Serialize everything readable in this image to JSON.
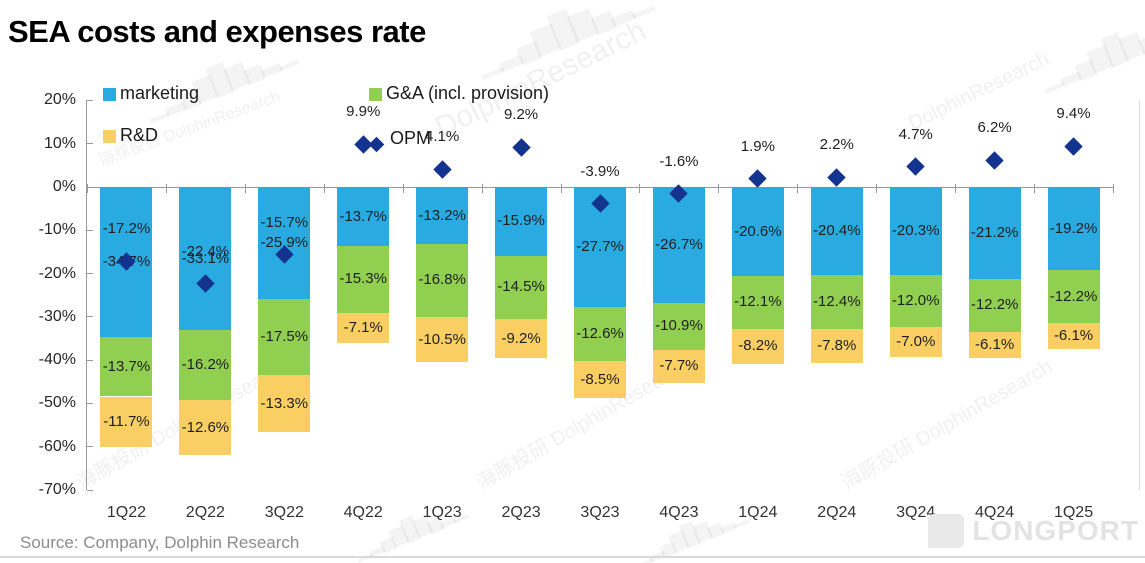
{
  "title": "SEA costs and expenses rate",
  "source": "Source: Company, Dolphin Research",
  "legend": [
    {
      "label": "marketing",
      "type": "square",
      "color": "#29ABE2"
    },
    {
      "label": "G&A (incl. provision)",
      "type": "square",
      "color": "#90CF50"
    },
    {
      "label": "R&D",
      "type": "square",
      "color": "#F9CF63"
    },
    {
      "label": "OPM",
      "type": "diamond",
      "color": "#14338F"
    }
  ],
  "watermarks": {
    "cn": "海豚投研",
    "en": "DolphinResearch",
    "longport": "LONGPORT",
    "logo_glyph": "▁▂▄▆█▆▄▂▁"
  },
  "chart_data": {
    "type": "bar",
    "subtype": "stacked-bars-with-scatter-overlay",
    "title": "SEA costs and expenses rate",
    "categories": [
      "1Q22",
      "2Q22",
      "3Q22",
      "4Q22",
      "1Q23",
      "2Q23",
      "3Q23",
      "4Q23",
      "1Q24",
      "2Q24",
      "3Q24",
      "4Q24",
      "1Q25"
    ],
    "series": [
      {
        "name": "marketing",
        "color": "#29ABE2",
        "values": [
          -34.7,
          -33.1,
          -25.9,
          -13.7,
          -13.2,
          -15.9,
          -27.7,
          -26.7,
          -20.6,
          -20.4,
          -20.3,
          -21.2,
          -19.2
        ]
      },
      {
        "name": "G&A (incl. provision)",
        "color": "#90CF50",
        "values": [
          -13.7,
          -16.2,
          -17.5,
          -15.3,
          -16.8,
          -14.5,
          -12.6,
          -10.9,
          -12.1,
          -12.4,
          -12.0,
          -12.2,
          -12.2
        ]
      },
      {
        "name": "R&D",
        "color": "#F9CF63",
        "values": [
          -11.7,
          -12.6,
          -13.3,
          -7.1,
          -10.5,
          -9.2,
          -8.5,
          -7.7,
          -8.2,
          -7.8,
          -7.0,
          -6.1,
          -6.1
        ]
      }
    ],
    "scatter": {
      "name": "OPM",
      "color": "#14338F",
      "values": [
        -17.2,
        -22.4,
        -15.7,
        9.9,
        4.1,
        9.2,
        -3.9,
        -1.6,
        1.9,
        2.2,
        4.7,
        6.2,
        9.4
      ]
    },
    "ylabel": "",
    "xlabel": "",
    "ylim": [
      -70,
      20
    ],
    "y_tick_step": 10,
    "y_tick_labels": [
      "20%",
      "10%",
      "0%",
      "-10%",
      "-20%",
      "-30%",
      "-40%",
      "-50%",
      "-60%",
      "-70%"
    ],
    "grid": false,
    "legend_position": "top",
    "data_labels": "all points, one decimal percent"
  }
}
